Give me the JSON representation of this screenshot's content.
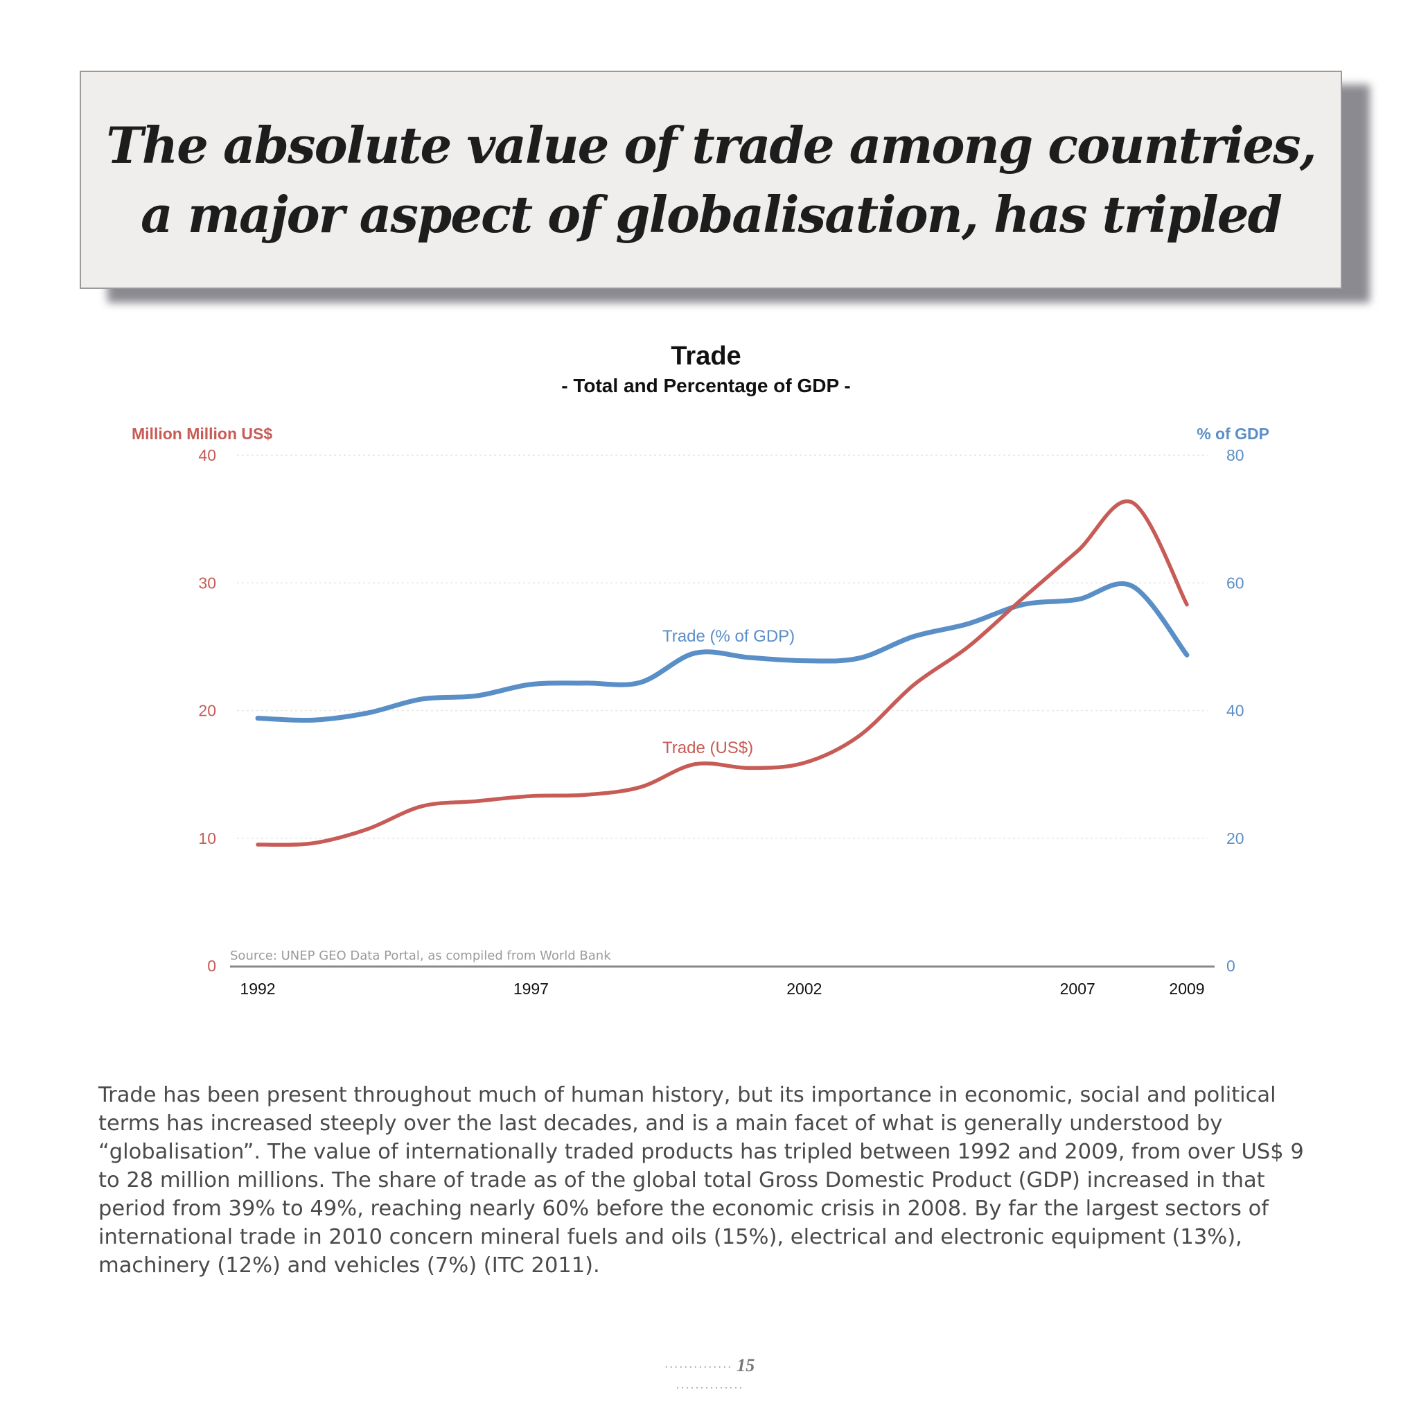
{
  "headline": {
    "line1": "The absolute value of trade among countries,",
    "line2": "a major aspect of globalisation, has tripled"
  },
  "chart_data": {
    "type": "line",
    "title": "Trade",
    "subtitle": "- Total and Percentage of GDP -",
    "y_left_label": "Million Million US$",
    "y_right_label": "% of GDP",
    "y_left_ticks": [
      "0",
      "10",
      "20",
      "30",
      "40"
    ],
    "y_right_ticks": [
      "0",
      "20",
      "40",
      "60",
      "80"
    ],
    "ylim_left": [
      0,
      40
    ],
    "ylim_right": [
      0,
      80
    ],
    "x_tick_labels": [
      "1992",
      "1997",
      "2002",
      "2007",
      "2009"
    ],
    "x_tick_values": [
      1992,
      1997,
      2002,
      2007,
      2009
    ],
    "xlim": [
      1992,
      2009
    ],
    "grid": true,
    "source": "Source: UNEP GEO Data Portal, as compiled from World Bank",
    "colors": {
      "usd": "#c75b56",
      "gdp": "#5a8ec7",
      "axis": "#888888"
    },
    "series": [
      {
        "name": "Trade (% of GDP)",
        "axis": "right",
        "x": [
          1992,
          1993,
          1994,
          1995,
          1996,
          1997,
          1998,
          1999,
          2000,
          2001,
          2002,
          2003,
          2004,
          2005,
          2006,
          2007,
          2008,
          2009
        ],
        "values": [
          38.8,
          38.5,
          39.6,
          41.8,
          42.3,
          44.1,
          44.3,
          44.4,
          49.0,
          48.3,
          47.8,
          48.2,
          51.6,
          53.6,
          56.6,
          57.4,
          59.5,
          48.7
        ]
      },
      {
        "name": "Trade (US$)",
        "axis": "left",
        "x": [
          1992,
          1993,
          1994,
          1995,
          1996,
          1997,
          1998,
          1999,
          2000,
          2001,
          2002,
          2003,
          2004,
          2005,
          2006,
          2007,
          2008,
          2009
        ],
        "values": [
          9.5,
          9.6,
          10.7,
          12.5,
          12.9,
          13.3,
          13.4,
          14.0,
          15.8,
          15.5,
          15.9,
          18.0,
          22.0,
          25.0,
          28.8,
          32.5,
          36.3,
          28.3
        ]
      }
    ]
  },
  "body_text": "Trade has been present throughout much of human history, but its importance in economic, social and political terms has increased steeply over the last decades, and is a main facet of what is generally understood by “globalisation”. The value of internationally traded products has tripled between 1992 and 2009, from over US$ 9 to 28 million millions. The share of trade as of the global total Gross Domestic Product (GDP) increased in that period from 39% to 49%, reaching nearly 60% before the economic crisis in 2008. By far the largest sectors of international trade in 2010 concern mineral fuels and oils (15%), electrical and electronic equipment (13%), machinery (12%) and vehicles (7%) (ITC 2011).",
  "page_number": "15"
}
